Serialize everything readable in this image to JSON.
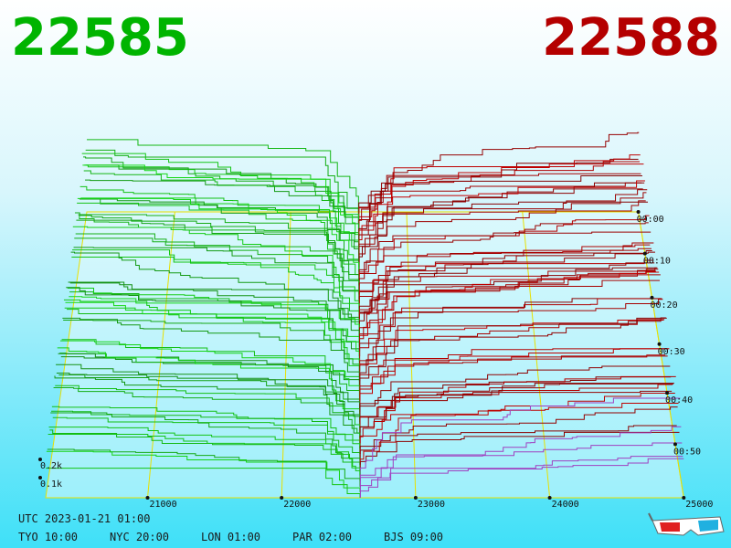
{
  "header": {
    "bid": "22585",
    "ask": "22588"
  },
  "axes": {
    "price_ticks": [
      "21000",
      "22000",
      "23000",
      "24000",
      "25000"
    ],
    "time_ticks": [
      "00:00",
      "00:10",
      "00:20",
      "00:30",
      "00:40",
      "00:50"
    ],
    "depth_ticks": [
      "0.2k",
      "0.1k"
    ]
  },
  "footer": {
    "utc": "UTC 2023-01-21 01:00",
    "zones": [
      "TYO 10:00",
      "NYC 20:00",
      "LON 01:00",
      "PAR 02:00",
      "BJS 09:00"
    ]
  }
}
